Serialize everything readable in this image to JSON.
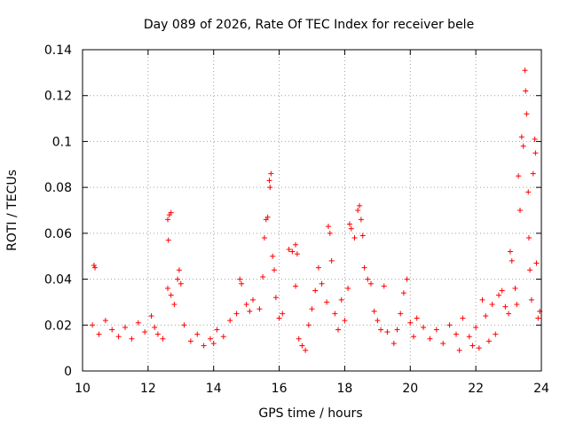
{
  "chart_data": {
    "type": "scatter",
    "title": "Day 089 of 2026, Rate Of TEC Index for receiver bele",
    "xlabel": "GPS time / hours",
    "ylabel": "ROTI / TECUs",
    "xlim": [
      10,
      24
    ],
    "ylim": [
      0,
      0.14
    ],
    "xticks": [
      10,
      12,
      14,
      16,
      18,
      20,
      22,
      24
    ],
    "xtick_labels": [
      "10",
      "12",
      "14",
      "16",
      "18",
      "20",
      "22",
      "24"
    ],
    "yticks": [
      0,
      0.02,
      0.04,
      0.06,
      0.08,
      0.1,
      0.12,
      0.14
    ],
    "ytick_labels": [
      "0",
      "0.02",
      "0.04",
      "0.06",
      "0.08",
      "0.1",
      "0.12",
      "0.14"
    ],
    "grid": true,
    "marker": "+",
    "marker_color": "#ff0000",
    "series": [
      {
        "name": "ROTI",
        "points": [
          [
            10.35,
            0.046
          ],
          [
            10.38,
            0.045
          ],
          [
            10.3,
            0.02
          ],
          [
            10.5,
            0.016
          ],
          [
            10.7,
            0.022
          ],
          [
            10.9,
            0.018
          ],
          [
            11.1,
            0.015
          ],
          [
            11.3,
            0.019
          ],
          [
            11.5,
            0.014
          ],
          [
            11.7,
            0.021
          ],
          [
            11.9,
            0.017
          ],
          [
            12.1,
            0.024
          ],
          [
            12.2,
            0.019
          ],
          [
            12.3,
            0.016
          ],
          [
            12.45,
            0.014
          ],
          [
            12.6,
            0.066
          ],
          [
            12.65,
            0.068
          ],
          [
            12.7,
            0.069
          ],
          [
            12.62,
            0.057
          ],
          [
            12.6,
            0.036
          ],
          [
            12.7,
            0.033
          ],
          [
            12.8,
            0.029
          ],
          [
            12.9,
            0.04
          ],
          [
            12.95,
            0.044
          ],
          [
            13.0,
            0.038
          ],
          [
            13.1,
            0.02
          ],
          [
            13.3,
            0.013
          ],
          [
            13.5,
            0.016
          ],
          [
            13.7,
            0.011
          ],
          [
            13.9,
            0.014
          ],
          [
            14.0,
            0.012
          ],
          [
            14.1,
            0.018
          ],
          [
            14.3,
            0.015
          ],
          [
            14.5,
            0.022
          ],
          [
            14.7,
            0.025
          ],
          [
            14.8,
            0.04
          ],
          [
            14.85,
            0.038
          ],
          [
            15.0,
            0.029
          ],
          [
            15.1,
            0.026
          ],
          [
            15.2,
            0.031
          ],
          [
            15.4,
            0.027
          ],
          [
            15.5,
            0.041
          ],
          [
            15.55,
            0.058
          ],
          [
            15.6,
            0.066
          ],
          [
            15.65,
            0.067
          ],
          [
            15.7,
            0.083
          ],
          [
            15.75,
            0.086
          ],
          [
            15.72,
            0.08
          ],
          [
            15.8,
            0.05
          ],
          [
            15.85,
            0.044
          ],
          [
            15.9,
            0.032
          ],
          [
            16.0,
            0.023
          ],
          [
            16.1,
            0.025
          ],
          [
            16.3,
            0.053
          ],
          [
            16.4,
            0.052
          ],
          [
            16.5,
            0.055
          ],
          [
            16.55,
            0.051
          ],
          [
            16.5,
            0.037
          ],
          [
            16.6,
            0.014
          ],
          [
            16.7,
            0.011
          ],
          [
            16.8,
            0.009
          ],
          [
            16.9,
            0.02
          ],
          [
            17.0,
            0.027
          ],
          [
            17.1,
            0.035
          ],
          [
            17.2,
            0.045
          ],
          [
            17.3,
            0.038
          ],
          [
            17.45,
            0.03
          ],
          [
            17.5,
            0.063
          ],
          [
            17.55,
            0.06
          ],
          [
            17.6,
            0.048
          ],
          [
            17.7,
            0.025
          ],
          [
            17.8,
            0.018
          ],
          [
            17.9,
            0.031
          ],
          [
            18.0,
            0.022
          ],
          [
            18.1,
            0.036
          ],
          [
            18.15,
            0.064
          ],
          [
            18.2,
            0.062
          ],
          [
            18.3,
            0.058
          ],
          [
            18.4,
            0.07
          ],
          [
            18.45,
            0.072
          ],
          [
            18.5,
            0.066
          ],
          [
            18.55,
            0.059
          ],
          [
            18.6,
            0.045
          ],
          [
            18.7,
            0.04
          ],
          [
            18.8,
            0.038
          ],
          [
            18.9,
            0.026
          ],
          [
            19.0,
            0.022
          ],
          [
            19.1,
            0.018
          ],
          [
            19.2,
            0.037
          ],
          [
            19.3,
            0.017
          ],
          [
            19.5,
            0.012
          ],
          [
            19.6,
            0.018
          ],
          [
            19.7,
            0.025
          ],
          [
            19.8,
            0.034
          ],
          [
            19.9,
            0.04
          ],
          [
            20.0,
            0.021
          ],
          [
            20.1,
            0.015
          ],
          [
            20.2,
            0.023
          ],
          [
            20.4,
            0.019
          ],
          [
            20.6,
            0.014
          ],
          [
            20.8,
            0.018
          ],
          [
            21.0,
            0.012
          ],
          [
            21.2,
            0.02
          ],
          [
            21.4,
            0.016
          ],
          [
            21.5,
            0.009
          ],
          [
            21.6,
            0.023
          ],
          [
            21.8,
            0.015
          ],
          [
            21.9,
            0.011
          ],
          [
            22.0,
            0.019
          ],
          [
            22.1,
            0.01
          ],
          [
            22.2,
            0.031
          ],
          [
            22.3,
            0.024
          ],
          [
            22.4,
            0.013
          ],
          [
            22.5,
            0.029
          ],
          [
            22.6,
            0.016
          ],
          [
            22.7,
            0.033
          ],
          [
            22.8,
            0.035
          ],
          [
            22.9,
            0.028
          ],
          [
            23.0,
            0.025
          ],
          [
            23.05,
            0.052
          ],
          [
            23.1,
            0.048
          ],
          [
            23.2,
            0.036
          ],
          [
            23.25,
            0.029
          ],
          [
            23.3,
            0.085
          ],
          [
            23.35,
            0.07
          ],
          [
            23.4,
            0.102
          ],
          [
            23.45,
            0.098
          ],
          [
            23.5,
            0.131
          ],
          [
            23.52,
            0.122
          ],
          [
            23.55,
            0.112
          ],
          [
            23.6,
            0.078
          ],
          [
            23.62,
            0.058
          ],
          [
            23.65,
            0.044
          ],
          [
            23.7,
            0.031
          ],
          [
            23.75,
            0.086
          ],
          [
            23.8,
            0.101
          ],
          [
            23.82,
            0.095
          ],
          [
            23.85,
            0.047
          ],
          [
            23.9,
            0.023
          ],
          [
            23.95,
            0.026
          ]
        ]
      }
    ]
  }
}
